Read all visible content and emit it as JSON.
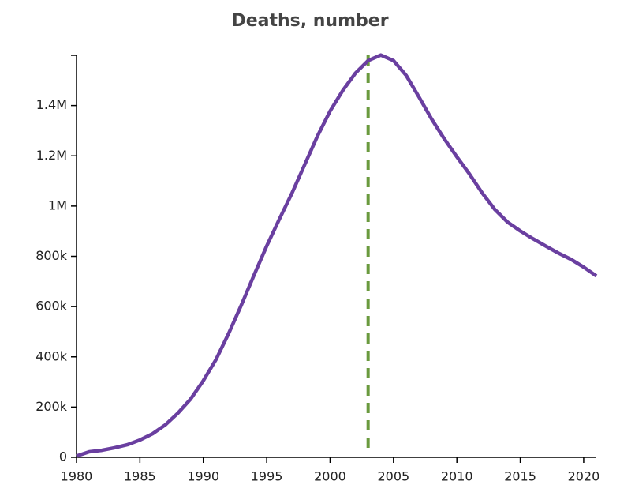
{
  "chart_data": {
    "type": "line",
    "title": "Deaths, number",
    "x": [
      1980,
      1981,
      1982,
      1983,
      1984,
      1985,
      1986,
      1987,
      1988,
      1989,
      1990,
      1991,
      1992,
      1993,
      1994,
      1995,
      1996,
      1997,
      1998,
      1999,
      2000,
      2001,
      2002,
      2003,
      2004,
      2005,
      2006,
      2007,
      2008,
      2009,
      2010,
      2011,
      2012,
      2013,
      2014,
      2015,
      2016,
      2017,
      2018,
      2019,
      2020,
      2021
    ],
    "series": [
      {
        "name": "Deaths",
        "color": "#6a3fa0",
        "values": [
          5000,
          22000,
          28000,
          38000,
          50000,
          69000,
          94000,
          129000,
          176000,
          232000,
          305000,
          389000,
          493000,
          606000,
          725000,
          841000,
          948000,
          1052000,
          1165000,
          1278000,
          1378000,
          1460000,
          1529000,
          1579000,
          1601000,
          1579000,
          1520000,
          1435000,
          1347000,
          1268000,
          1196000,
          1127000,
          1052000,
          986000,
          936000,
          901000,
          870000,
          841000,
          813000,
          788000,
          757000,
          722000
        ]
      }
    ],
    "reference_x": 2003,
    "reference_color": "#6a9a3e",
    "xlim": [
      1980,
      2021
    ],
    "xticks": [
      1980,
      1985,
      1990,
      1995,
      2000,
      2005,
      2010,
      2015,
      2020
    ],
    "ylim": [
      0,
      1600000
    ],
    "yticks": [
      0,
      {
        "value": 200000,
        "label": "200k"
      },
      {
        "value": 400000,
        "label": "400k"
      },
      {
        "value": 600000,
        "label": "600k"
      },
      {
        "value": 800000,
        "label": "800k"
      },
      {
        "value": 1000000,
        "label": "1M"
      },
      {
        "value": 1200000,
        "label": "1.2M"
      },
      {
        "value": 1400000,
        "label": "1.4M"
      }
    ]
  }
}
